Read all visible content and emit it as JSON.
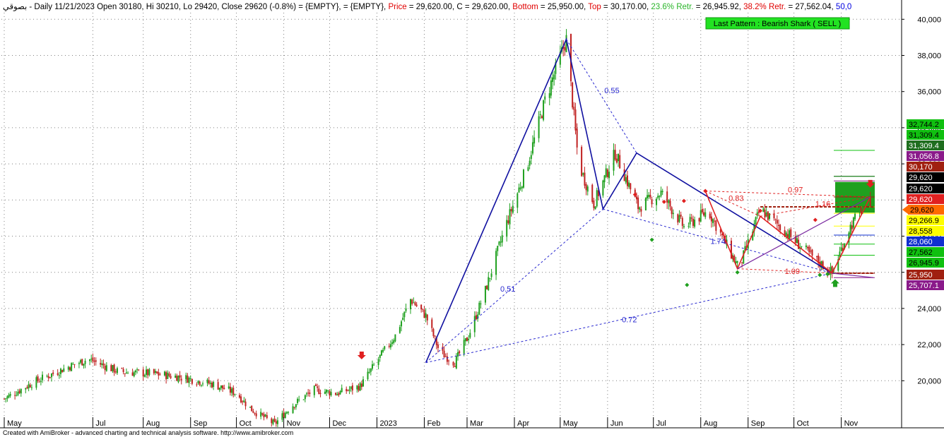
{
  "header": {
    "segments": [
      {
        "text": "بصوقي - Daily 11/21/2023 Open 30180, Hi 30210, Lo 29420, Close 29620 (-0.8%)",
        "color": "#000000"
      },
      {
        "text": " = {EMPTY},",
        "color": "#000000"
      },
      {
        "text": " = {EMPTY},",
        "color": "#000000"
      },
      {
        "text": " Price",
        "color": "#e00000"
      },
      {
        "text": " = 29,620.00, C = 29,620.00,",
        "color": "#000000"
      },
      {
        "text": " Bottom",
        "color": "#e00000"
      },
      {
        "text": " = 25,950.00,",
        "color": "#000000"
      },
      {
        "text": " Top",
        "color": "#e00000"
      },
      {
        "text": " = 30,170.00,",
        "color": "#000000"
      },
      {
        "text": " 23.6% Retr.",
        "color": "#2bb52b"
      },
      {
        "text": " = 26,945.92,",
        "color": "#000000"
      },
      {
        "text": " 38.2% Retr.",
        "color": "#e00000"
      },
      {
        "text": " = 27,562.04,",
        "color": "#000000"
      },
      {
        "text": " 50,0",
        "color": "#0000e0"
      }
    ]
  },
  "pattern_label": "Last Pattern : Bearish Shark ( SELL )",
  "footer": "Created with AmiBroker - advanced charting and technical analysis software. http://www.amibroker.com",
  "colors": {
    "bull_candle": "#1fa01f",
    "bear_candle": "#c02020",
    "pattern_line": "#1010a0",
    "pattern_dash": "#2a2ad0",
    "red_pattern": "#e02020",
    "pattern_label_bg": "#22e222"
  },
  "chart_data": {
    "type": "candlestick",
    "title": "بصوقي - Daily",
    "ylim": [
      18000,
      41000
    ],
    "y_ticks": [
      20000,
      22000,
      24000,
      26000,
      28000,
      30000,
      32000,
      34000,
      36000,
      38000,
      40000
    ],
    "y_tick_labels": [
      "20,000",
      "22,000",
      "24,000",
      "26,000",
      "28,000",
      "30,000",
      "32,000",
      "34,000",
      "36,000",
      "38,000",
      "40,000"
    ],
    "x_labels": [
      "May",
      "Jul",
      "Aug",
      "Sep",
      "Oct",
      "Nov",
      "Dec",
      "2023",
      "Feb",
      "Mar",
      "Apr",
      "May",
      "Jun",
      "Jul",
      "Aug",
      "Sep",
      "Oct",
      "Nov"
    ],
    "last_bar": {
      "date": "11/21/2023",
      "open": 30180,
      "high": 30210,
      "low": 29420,
      "close": 29620,
      "change_pct": -0.8
    },
    "price_path": [
      {
        "date": "2022-05-01",
        "close": 19000
      },
      {
        "date": "2022-05-20",
        "close": 19900
      },
      {
        "date": "2022-06-10",
        "close": 20700
      },
      {
        "date": "2022-06-25",
        "close": 21200
      },
      {
        "date": "2022-07-15",
        "close": 20500
      },
      {
        "date": "2022-08-05",
        "close": 20400
      },
      {
        "date": "2022-08-25",
        "close": 20200
      },
      {
        "date": "2022-09-15",
        "close": 19800
      },
      {
        "date": "2022-09-30",
        "close": 19300
      },
      {
        "date": "2022-10-10",
        "close": 18400
      },
      {
        "date": "2022-10-25",
        "close": 17600
      },
      {
        "date": "2022-11-05",
        "close": 18600
      },
      {
        "date": "2022-11-20",
        "close": 19500
      },
      {
        "date": "2022-12-05",
        "close": 19300
      },
      {
        "date": "2022-12-20",
        "close": 19700
      },
      {
        "date": "2023-01-01",
        "close": 21200
      },
      {
        "date": "2023-01-12",
        "close": 22500
      },
      {
        "date": "2023-01-22",
        "close": 24500
      },
      {
        "date": "2023-02-01",
        "close": 23600
      },
      {
        "date": "2023-02-10",
        "close": 21600
      },
      {
        "date": "2023-02-20",
        "close": 21000
      },
      {
        "date": "2023-03-01",
        "close": 22500
      },
      {
        "date": "2023-03-12",
        "close": 25000
      },
      {
        "date": "2023-03-25",
        "close": 28500
      },
      {
        "date": "2023-04-08",
        "close": 31800
      },
      {
        "date": "2023-04-20",
        "close": 35500
      },
      {
        "date": "2023-05-04",
        "close": 38900
      },
      {
        "date": "2023-05-12",
        "close": 32000
      },
      {
        "date": "2023-05-22",
        "close": 29800
      },
      {
        "date": "2023-06-05",
        "close": 32600
      },
      {
        "date": "2023-06-20",
        "close": 29600
      },
      {
        "date": "2023-07-05",
        "close": 30400
      },
      {
        "date": "2023-07-20",
        "close": 28500
      },
      {
        "date": "2023-08-05",
        "close": 29400
      },
      {
        "date": "2023-08-25",
        "close": 26200
      },
      {
        "date": "2023-09-08",
        "close": 29500
      },
      {
        "date": "2023-09-25",
        "close": 28200
      },
      {
        "date": "2023-10-10",
        "close": 27000
      },
      {
        "date": "2023-10-25",
        "close": 25950
      },
      {
        "date": "2023-11-05",
        "close": 28400
      },
      {
        "date": "2023-11-18",
        "close": 30170
      },
      {
        "date": "2023-11-21",
        "close": 29620
      }
    ],
    "pattern_points": [
      {
        "date": "2023-02-01",
        "price": 21000
      },
      {
        "date": "2023-05-04",
        "price": 38900
      },
      {
        "date": "2023-05-28",
        "price": 29500
      },
      {
        "date": "2023-06-19",
        "price": 32600
      },
      {
        "date": "2023-10-25",
        "price": 25950
      }
    ],
    "red_pattern_points": [
      {
        "date": "2023-08-03",
        "price": 30500
      },
      {
        "date": "2023-08-24",
        "price": 26200
      },
      {
        "date": "2023-09-08",
        "price": 29100
      },
      {
        "date": "2023-10-25",
        "price": 25950
      },
      {
        "date": "2023-11-19",
        "price": 30170
      }
    ],
    "ratios": [
      {
        "label": "0.55",
        "color": "#2a2ad0"
      },
      {
        "label": "0.51",
        "color": "#2a2ad0"
      },
      {
        "label": "0.72",
        "color": "#2a2ad0"
      },
      {
        "label": "1.74",
        "color": "#2a2ad0"
      },
      {
        "label": "0.83",
        "color": "#e02020"
      },
      {
        "label": "0.97",
        "color": "#e02020"
      },
      {
        "label": "1.16",
        "color": "#e02020"
      },
      {
        "label": "1.09",
        "color": "#e02020"
      }
    ],
    "price_tags": [
      {
        "label": "32,744.2",
        "value": 32744.2,
        "bg": "#10c010",
        "fg": "#000000"
      },
      {
        "label": "31,309.4",
        "value": 31309.4,
        "bg": "#10c010",
        "fg": "#000000"
      },
      {
        "label": "31,309.4",
        "value": 31309.4,
        "bg": "#1f6e1f",
        "fg": "#ffffff"
      },
      {
        "label": "31,056.8",
        "value": 31056.8,
        "bg": "#8a1a8a",
        "fg": "#ffffff"
      },
      {
        "label": "30,170",
        "value": 30170,
        "bg": "#a02010",
        "fg": "#ffffff"
      },
      {
        "label": "29,620",
        "value": 29620,
        "bg": "#000000",
        "fg": "#ffffff"
      },
      {
        "label": "29,620",
        "value": 29620,
        "bg": "#000000",
        "fg": "#ffffff"
      },
      {
        "label": "29,620",
        "value": 29620,
        "bg": "#e02020",
        "fg": "#ffffff"
      },
      {
        "label": "29,620",
        "value": 29620,
        "bg": "#ff6a00",
        "fg": "#000000"
      },
      {
        "label": "29,266.9",
        "value": 29266.9,
        "bg": "#ffff00",
        "fg": "#000000"
      },
      {
        "label": "28,558",
        "value": 28558,
        "bg": "#ffff00",
        "fg": "#000000"
      },
      {
        "label": "28,060",
        "value": 28060,
        "bg": "#1030d0",
        "fg": "#ffffff"
      },
      {
        "label": "27,562",
        "value": 27562,
        "bg": "#10c010",
        "fg": "#000000"
      },
      {
        "label": "26,945.9",
        "value": 26945.9,
        "bg": "#10c010",
        "fg": "#000000"
      },
      {
        "label": "25,950",
        "value": 25950,
        "bg": "#a02010",
        "fg": "#ffffff"
      },
      {
        "label": "25,707.1",
        "value": 25707.1,
        "bg": "#8a1a8a",
        "fg": "#ffffff"
      }
    ],
    "target_zone": {
      "low": 29300,
      "high": 31000,
      "color": "#1fa01f"
    },
    "grid": true,
    "legend": "none"
  }
}
